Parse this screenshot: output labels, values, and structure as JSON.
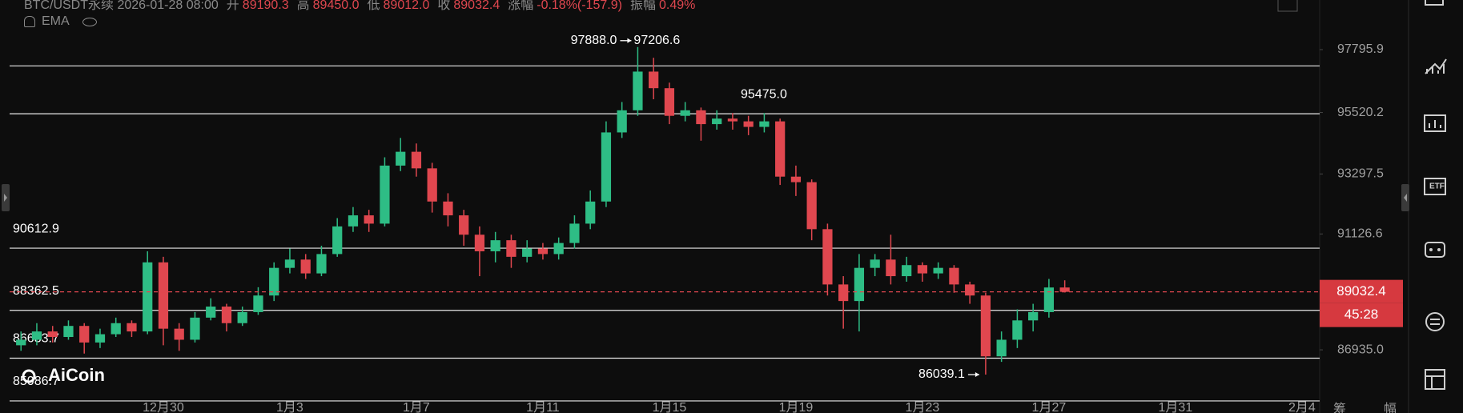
{
  "header": {
    "symbol_time": "BTC/USDT永续 2026-01-28 08:00",
    "items": [
      {
        "label": "开",
        "value": "89190.3"
      },
      {
        "label": "高",
        "value": "89450.0"
      },
      {
        "label": "低",
        "value": "89012.0"
      },
      {
        "label": "收",
        "value": "89032.4"
      },
      {
        "label": "涨幅",
        "value": "-0.18%(-157.9)"
      },
      {
        "label": "振幅",
        "value": "0.49%"
      }
    ],
    "indicator": "EMA"
  },
  "watermark": "AiCoin",
  "toolbar_labels": [
    "筹",
    "幅"
  ],
  "chart_data": {
    "type": "candlestick",
    "up_color": "#2ebd85",
    "down_color": "#e0474f",
    "xlim": [
      -4.86,
      36.56
    ],
    "xticks": [
      {
        "value": 0,
        "label": "12月30"
      },
      {
        "value": 4,
        "label": "1月3"
      },
      {
        "value": 8,
        "label": "1月7"
      },
      {
        "value": 12,
        "label": "1月11"
      },
      {
        "value": 16,
        "label": "1月15"
      },
      {
        "value": 20,
        "label": "1月19"
      },
      {
        "value": 24,
        "label": "1月23"
      },
      {
        "value": 28,
        "label": "1月27"
      },
      {
        "value": 32,
        "label": "1月31"
      },
      {
        "value": 36,
        "label": "2月4"
      }
    ],
    "ylim": [
      84650,
      99590
    ],
    "yticks": [
      97795.9,
      95520.2,
      93297.5,
      91126.6,
      {
        "value": 86935,
        "label": "86935.0"
      }
    ],
    "x": [
      -4.5,
      -4,
      -3.5,
      -3,
      -2.5,
      -2,
      -1.5,
      -1,
      -0.5,
      0,
      0.5,
      1,
      1.5,
      2,
      2.5,
      3,
      3.5,
      4,
      4.5,
      5,
      5.5,
      6,
      6.5,
      7,
      7.5,
      8,
      8.5,
      9,
      9.5,
      10,
      10.5,
      11,
      11.5,
      12,
      12.5,
      13,
      13.5,
      14,
      14.5,
      15,
      15.5,
      16,
      16.5,
      17,
      17.5,
      18,
      18.5,
      19,
      19.5,
      20,
      20.5,
      21,
      21.5,
      22,
      22.5,
      23,
      23.5,
      24,
      24.5,
      25,
      25.5,
      26,
      26.5,
      27,
      27.5,
      28,
      28.5
    ],
    "open": [
      87100,
      87300,
      87600,
      87400,
      87800,
      87200,
      87500,
      87900,
      87600,
      90100,
      87700,
      87300,
      88100,
      88500,
      87900,
      88300,
      88900,
      89900,
      90200,
      89700,
      90400,
      91400,
      91800,
      91500,
      93600,
      94100,
      93500,
      92300,
      91800,
      91100,
      90500,
      90900,
      90300,
      90600,
      90400,
      90800,
      91500,
      92300,
      94800,
      95600,
      97000,
      96400,
      95400,
      95600,
      95100,
      95300,
      95200,
      95000,
      95200,
      93200,
      93000,
      91300,
      89300,
      88700,
      89900,
      90200,
      89600,
      90000,
      89700,
      89900,
      89300,
      88900,
      86700,
      87300,
      88000,
      88300,
      89190.3
    ],
    "high": [
      87600,
      87900,
      87800,
      88000,
      87900,
      87700,
      88100,
      88000,
      90500,
      90300,
      87900,
      88300,
      88800,
      88600,
      88500,
      89200,
      90100,
      90600,
      90400,
      90700,
      91700,
      92100,
      92000,
      93900,
      94600,
      94400,
      93700,
      92600,
      92000,
      91400,
      91200,
      91100,
      90900,
      90800,
      91000,
      91800,
      92700,
      95200,
      95900,
      97888,
      97500,
      96600,
      95900,
      95700,
      95600,
      95500,
      95400,
      95500,
      95300,
      93600,
      93100,
      91500,
      89600,
      90400,
      90400,
      91100,
      90300,
      90100,
      90100,
      90000,
      89400,
      89000,
      87600,
      88400,
      88600,
      89500,
      89450
    ],
    "low": [
      86900,
      87100,
      87200,
      87300,
      86800,
      87000,
      87400,
      87400,
      87500,
      87100,
      86900,
      87200,
      88000,
      87600,
      87800,
      88200,
      88700,
      89700,
      89500,
      89600,
      90300,
      91200,
      91200,
      91400,
      93400,
      93200,
      91900,
      91400,
      90700,
      89600,
      90100,
      89900,
      90100,
      90200,
      90200,
      90600,
      91300,
      92100,
      94600,
      95400,
      96000,
      95100,
      95200,
      94500,
      94900,
      94900,
      94700,
      94800,
      92900,
      92500,
      90900,
      88900,
      87700,
      87600,
      89600,
      89300,
      89400,
      89400,
      89500,
      89000,
      88600,
      86039.1,
      86500,
      87000,
      87600,
      88100,
      89012
    ],
    "close": [
      87300,
      87600,
      87400,
      87800,
      87200,
      87500,
      87900,
      87600,
      90100,
      87700,
      87300,
      88100,
      88500,
      87900,
      88300,
      88900,
      89900,
      90200,
      89700,
      90400,
      91400,
      91800,
      91500,
      93600,
      94100,
      93500,
      92300,
      91800,
      91100,
      90500,
      90900,
      90300,
      90600,
      90400,
      90800,
      91500,
      92300,
      94800,
      95600,
      97000,
      96400,
      95400,
      95600,
      95100,
      95300,
      95200,
      95000,
      95200,
      93200,
      93000,
      91300,
      89300,
      88700,
      89900,
      90200,
      89600,
      90000,
      89700,
      89900,
      89300,
      88900,
      86700,
      87300,
      88000,
      88300,
      89190.3,
      89032.4
    ],
    "levels": [
      97206.6,
      {
        "value": 95475,
        "label": "95475.0"
      },
      90612.9,
      88362.5,
      86633.7,
      85086.7
    ],
    "extremes": {
      "high": {
        "value": 97888,
        "label": "97888.0"
      },
      "low": {
        "value": 86039.1,
        "label": "86039.1"
      }
    },
    "current_price": 89032.4,
    "countdown": "45:28"
  }
}
